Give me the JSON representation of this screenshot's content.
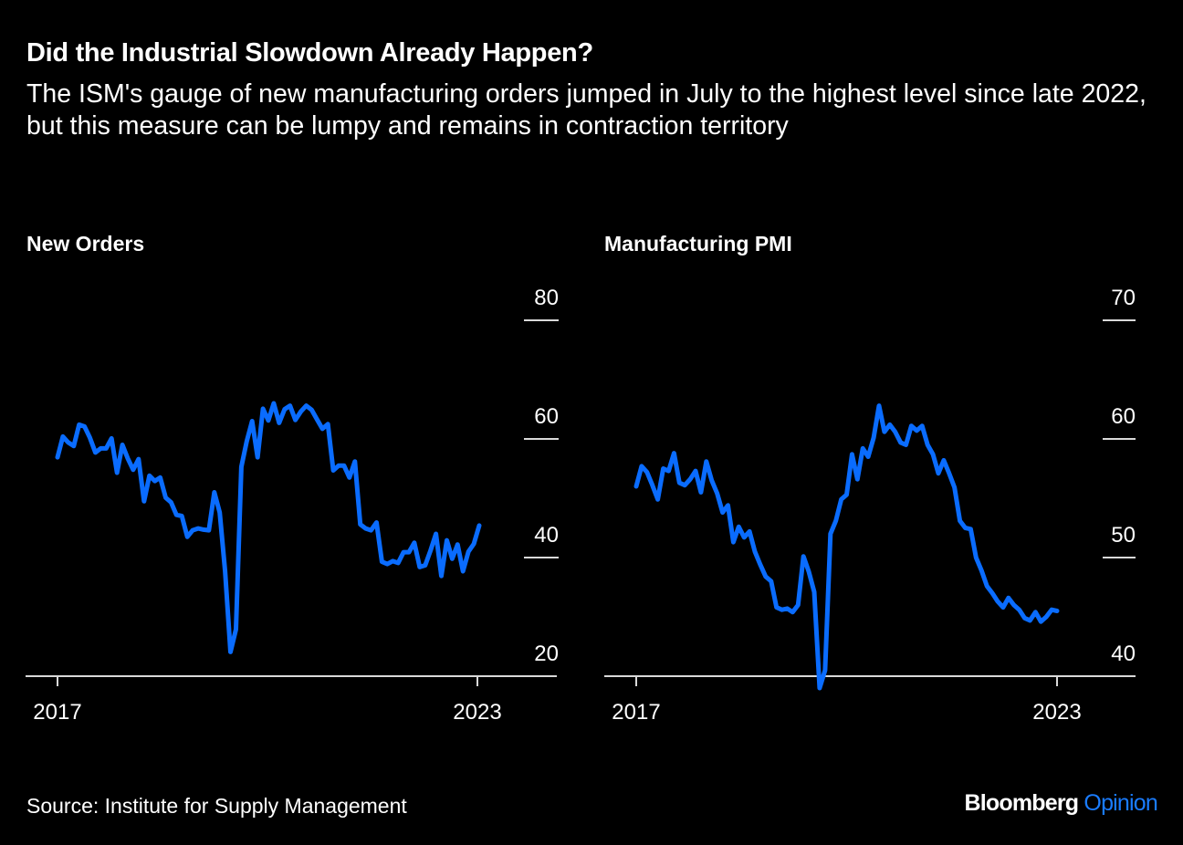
{
  "header": {
    "title": "Did the Industrial Slowdown Already Happen?",
    "subtitle": "The ISM's gauge of new manufacturing orders jumped in July to the highest level since late 2022, but this measure can be lumpy and remains in contraction territory"
  },
  "footer": {
    "source": "Source: Institute for Supply Management",
    "brand_main": "Bloomberg",
    "brand_accent": "Opinion"
  },
  "colors": {
    "line": "#0a6cff",
    "axis": "#d9d9d9",
    "text": "#ffffff",
    "background": "#000000",
    "brand_accent": "#1a7cff"
  },
  "chart_data": [
    {
      "type": "line",
      "title": "New Orders",
      "xlabel": "",
      "ylabel": "",
      "x_start": "2017-01",
      "x_end": "2023-07",
      "frequency": "monthly",
      "x_ticks": [
        "2017",
        "2023"
      ],
      "y_ticks": [
        20,
        40,
        60,
        80
      ],
      "ylim": [
        20,
        80
      ],
      "y_axis_side": "right",
      "grid": false,
      "series": [
        {
          "name": "New Orders",
          "values": [
            56.9,
            60.4,
            59.4,
            58.8,
            62.4,
            62.1,
            60.2,
            57.7,
            58.4,
            58.4,
            60.1,
            54.3,
            59.0,
            56.7,
            54.8,
            56.6,
            49.5,
            53.8,
            52.9,
            53.5,
            50.1,
            49.3,
            47.2,
            47.0,
            43.5,
            44.6,
            44.9,
            44.7,
            44.6,
            51.0,
            47.6,
            37.7,
            24.1,
            27.9,
            55.3,
            59.6,
            63.0,
            56.9,
            65.1,
            63.1,
            66.0,
            62.7,
            65.0,
            65.6,
            63.2,
            64.6,
            65.6,
            64.9,
            63.3,
            61.7,
            62.5,
            54.7,
            55.5,
            55.5,
            53.5,
            56.2,
            45.6,
            44.9,
            44.6,
            45.9,
            39.3,
            38.9,
            39.4,
            39.1,
            40.9,
            40.9,
            42.5,
            38.4,
            38.7,
            41.2,
            44.0,
            36.9,
            42.9,
            39.8,
            42.2,
            37.7,
            41.0,
            42.3,
            45.4
          ]
        }
      ]
    },
    {
      "type": "line",
      "title": "Manufacturing PMI",
      "xlabel": "",
      "ylabel": "",
      "x_start": "2017-01",
      "x_end": "2023-07",
      "frequency": "monthly",
      "x_ticks": [
        "2017",
        "2023"
      ],
      "y_ticks": [
        40,
        50,
        60,
        70
      ],
      "ylim": [
        40,
        70
      ],
      "y_axis_side": "right",
      "grid": false,
      "series": [
        {
          "name": "Manufacturing PMI",
          "values": [
            56.0,
            57.7,
            57.2,
            56.1,
            54.9,
            57.5,
            57.3,
            58.8,
            56.3,
            56.1,
            56.6,
            57.3,
            55.5,
            58.1,
            56.5,
            55.4,
            53.8,
            54.4,
            51.3,
            52.6,
            51.7,
            52.2,
            50.5,
            49.4,
            48.4,
            48.0,
            45.8,
            45.6,
            45.7,
            45.4,
            46.0,
            50.1,
            48.8,
            47.1,
            39.0,
            40.5,
            52.0,
            53.1,
            54.9,
            55.3,
            58.7,
            56.6,
            59.2,
            58.5,
            60.1,
            62.8,
            60.6,
            61.2,
            60.6,
            59.7,
            59.5,
            61.1,
            60.7,
            61.1,
            59.5,
            58.7,
            57.1,
            58.2,
            57.1,
            55.9,
            53.1,
            52.5,
            52.4,
            50.0,
            48.9,
            47.6,
            47.0,
            46.3,
            45.8,
            46.6,
            46.0,
            45.6,
            44.9,
            44.7,
            45.4,
            44.6,
            45.0,
            45.6,
            45.5
          ]
        }
      ]
    }
  ]
}
